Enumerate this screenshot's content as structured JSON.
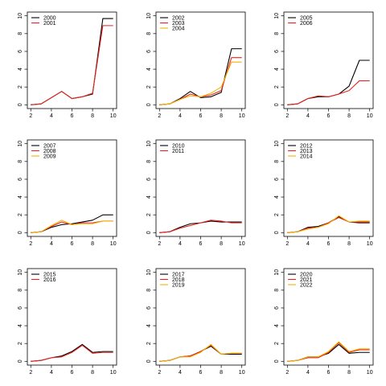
{
  "colors": {
    "first": "#000000",
    "second": "#e8251f",
    "third": "#f2b400"
  },
  "chart_data": [
    {
      "type": "line",
      "xlim": [
        2,
        10
      ],
      "ylim": [
        0,
        10
      ],
      "xticks": [
        2,
        4,
        6,
        8,
        10
      ],
      "yticks": [
        0,
        2,
        4,
        6,
        8,
        10
      ],
      "legend": "top-left",
      "x": [
        2,
        3,
        4,
        5,
        6,
        7,
        8,
        9,
        10
      ],
      "series": [
        {
          "name": "2000",
          "color": "#000000",
          "values": [
            0.0,
            0.1,
            0.8,
            1.5,
            0.7,
            0.9,
            1.2,
            9.7,
            9.7
          ]
        },
        {
          "name": "2001",
          "color": "#e8251f",
          "values": [
            0.0,
            0.1,
            0.8,
            1.5,
            0.7,
            0.9,
            1.3,
            8.9,
            8.9
          ]
        }
      ]
    },
    {
      "type": "line",
      "xlim": [
        2,
        10
      ],
      "ylim": [
        0,
        10
      ],
      "xticks": [
        2,
        4,
        6,
        8,
        10
      ],
      "yticks": [
        0,
        2,
        4,
        6,
        8,
        10
      ],
      "legend": "top-left",
      "x": [
        2,
        3,
        4,
        5,
        6,
        7,
        8,
        9,
        10
      ],
      "series": [
        {
          "name": "2002",
          "color": "#000000",
          "values": [
            0.0,
            0.1,
            0.7,
            1.5,
            0.8,
            0.9,
            1.4,
            6.3,
            6.3
          ]
        },
        {
          "name": "2003",
          "color": "#e8251f",
          "values": [
            0.0,
            0.1,
            0.6,
            1.2,
            0.9,
            1.1,
            1.6,
            5.3,
            5.3
          ]
        },
        {
          "name": "2004",
          "color": "#f2b400",
          "values": [
            0.0,
            0.1,
            0.6,
            1.0,
            0.9,
            1.3,
            2.0,
            4.8,
            4.8
          ]
        }
      ]
    },
    {
      "type": "line",
      "xlim": [
        2,
        10
      ],
      "ylim": [
        0,
        10
      ],
      "xticks": [
        2,
        4,
        6,
        8,
        10
      ],
      "yticks": [
        0,
        2,
        4,
        6,
        8,
        10
      ],
      "legend": "top-left",
      "x": [
        2,
        3,
        4,
        5,
        6,
        7,
        8,
        9,
        10
      ],
      "series": [
        {
          "name": "2005",
          "color": "#000000",
          "values": [
            0.0,
            0.1,
            0.7,
            0.9,
            0.9,
            1.2,
            2.1,
            5.0,
            5.0
          ]
        },
        {
          "name": "2006",
          "color": "#e8251f",
          "values": [
            0.0,
            0.1,
            0.7,
            1.0,
            0.9,
            1.2,
            1.6,
            2.7,
            2.7
          ]
        }
      ]
    },
    {
      "type": "line",
      "xlim": [
        2,
        10
      ],
      "ylim": [
        0,
        10
      ],
      "xticks": [
        2,
        4,
        6,
        8,
        10
      ],
      "yticks": [
        0,
        2,
        4,
        6,
        8,
        10
      ],
      "legend": "top-left",
      "x": [
        2,
        3,
        4,
        5,
        6,
        7,
        8,
        9,
        10
      ],
      "series": [
        {
          "name": "2007",
          "color": "#000000",
          "values": [
            0.0,
            0.1,
            0.6,
            0.9,
            1.0,
            1.2,
            1.4,
            2.0,
            2.0
          ]
        },
        {
          "name": "2008",
          "color": "#e8251f",
          "values": [
            0.0,
            0.1,
            0.7,
            1.2,
            0.9,
            1.1,
            1.1,
            1.3,
            1.3
          ]
        },
        {
          "name": "2009",
          "color": "#f2b400",
          "values": [
            0.0,
            0.1,
            0.8,
            1.4,
            0.9,
            1.0,
            1.0,
            1.3,
            1.3
          ]
        }
      ]
    },
    {
      "type": "line",
      "xlim": [
        2,
        10
      ],
      "ylim": [
        0,
        10
      ],
      "xticks": [
        2,
        4,
        6,
        8,
        10
      ],
      "yticks": [
        0,
        2,
        4,
        6,
        8,
        10
      ],
      "legend": "top-left",
      "x": [
        2,
        3,
        4,
        5,
        6,
        7,
        8,
        9,
        10
      ],
      "series": [
        {
          "name": "2010",
          "color": "#000000",
          "values": [
            0.0,
            0.1,
            0.6,
            1.0,
            1.1,
            1.3,
            1.2,
            1.2,
            1.2
          ]
        },
        {
          "name": "2011",
          "color": "#e8251f",
          "values": [
            0.0,
            0.1,
            0.5,
            0.8,
            1.1,
            1.4,
            1.3,
            1.1,
            1.1
          ]
        }
      ]
    },
    {
      "type": "line",
      "xlim": [
        2,
        10
      ],
      "ylim": [
        0,
        10
      ],
      "xticks": [
        2,
        4,
        6,
        8,
        10
      ],
      "yticks": [
        0,
        2,
        4,
        6,
        8,
        10
      ],
      "legend": "top-left",
      "x": [
        2,
        3,
        4,
        5,
        6,
        7,
        8,
        9,
        10
      ],
      "series": [
        {
          "name": "2012",
          "color": "#000000",
          "values": [
            0.0,
            0.1,
            0.6,
            0.7,
            1.1,
            1.8,
            1.2,
            1.1,
            1.1
          ]
        },
        {
          "name": "2013",
          "color": "#e8251f",
          "values": [
            0.0,
            0.1,
            0.5,
            0.6,
            1.1,
            1.7,
            1.2,
            1.2,
            1.2
          ]
        },
        {
          "name": "2014",
          "color": "#f2b400",
          "values": [
            0.0,
            0.1,
            0.4,
            0.6,
            1.0,
            1.9,
            1.2,
            1.3,
            1.3
          ]
        }
      ]
    },
    {
      "type": "line",
      "xlim": [
        2,
        10
      ],
      "ylim": [
        0,
        10
      ],
      "xticks": [
        2,
        4,
        6,
        8,
        10
      ],
      "yticks": [
        0,
        2,
        4,
        6,
        8,
        10
      ],
      "legend": "top-left",
      "x": [
        2,
        3,
        4,
        5,
        6,
        7,
        8,
        9,
        10
      ],
      "series": [
        {
          "name": "2015",
          "color": "#000000",
          "values": [
            0.0,
            0.1,
            0.4,
            0.6,
            1.1,
            1.9,
            1.0,
            1.1,
            1.1
          ]
        },
        {
          "name": "2016",
          "color": "#e8251f",
          "values": [
            0.0,
            0.1,
            0.4,
            0.5,
            1.0,
            1.8,
            0.9,
            1.0,
            1.0
          ]
        }
      ]
    },
    {
      "type": "line",
      "xlim": [
        2,
        10
      ],
      "ylim": [
        0,
        10
      ],
      "xticks": [
        2,
        4,
        6,
        8,
        10
      ],
      "yticks": [
        0,
        2,
        4,
        6,
        8,
        10
      ],
      "legend": "top-left",
      "x": [
        2,
        3,
        4,
        5,
        6,
        7,
        8,
        9,
        10
      ],
      "series": [
        {
          "name": "2017",
          "color": "#000000",
          "values": [
            0.0,
            0.1,
            0.5,
            0.6,
            1.1,
            1.7,
            0.8,
            0.8,
            0.8
          ]
        },
        {
          "name": "2018",
          "color": "#e8251f",
          "values": [
            0.0,
            0.1,
            0.5,
            0.6,
            1.1,
            1.8,
            0.8,
            0.9,
            0.9
          ]
        },
        {
          "name": "2019",
          "color": "#f2b400",
          "values": [
            0.0,
            0.1,
            0.5,
            0.5,
            1.0,
            1.9,
            0.8,
            0.9,
            0.9
          ]
        }
      ]
    },
    {
      "type": "line",
      "xlim": [
        2,
        10
      ],
      "ylim": [
        0,
        10
      ],
      "xticks": [
        2,
        4,
        6,
        8,
        10
      ],
      "yticks": [
        0,
        2,
        4,
        6,
        8,
        10
      ],
      "legend": "top-left",
      "x": [
        2,
        3,
        4,
        5,
        6,
        7,
        8,
        9,
        10
      ],
      "series": [
        {
          "name": "2020",
          "color": "#000000",
          "values": [
            0.0,
            0.1,
            0.5,
            0.5,
            0.9,
            1.9,
            0.9,
            1.0,
            1.0
          ]
        },
        {
          "name": "2021",
          "color": "#e8251f",
          "values": [
            0.0,
            0.1,
            0.4,
            0.4,
            1.0,
            2.1,
            1.0,
            1.3,
            1.3
          ]
        },
        {
          "name": "2022",
          "color": "#f2b400",
          "values": [
            0.0,
            0.1,
            0.5,
            0.5,
            1.1,
            2.2,
            1.1,
            1.4,
            1.4
          ]
        }
      ]
    }
  ]
}
